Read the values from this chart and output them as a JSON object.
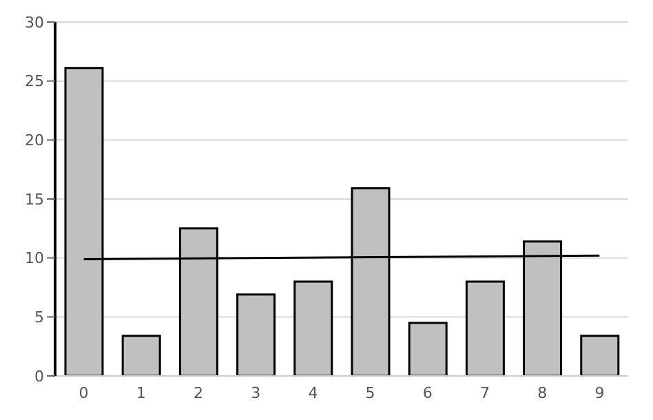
{
  "chart_data": {
    "type": "bar",
    "categories": [
      "0",
      "1",
      "2",
      "3",
      "4",
      "5",
      "6",
      "7",
      "8",
      "9"
    ],
    "series": [
      {
        "color": "#c0c0c0",
        "values": [
          26.1,
          3.4,
          12.5,
          6.9,
          8.0,
          15.9,
          4.5,
          8.0,
          11.4,
          3.4
        ]
      },
      {
        "type": "line",
        "color": "#000000",
        "values": [
          9.9,
          null,
          null,
          null,
          null,
          null,
          null,
          null,
          null,
          10.2
        ]
      }
    ],
    "ylim": [
      0,
      30
    ],
    "yticks": [
      0,
      5,
      10,
      15,
      20,
      25,
      30
    ],
    "grid": "y",
    "legend": false,
    "marker": "none",
    "line_style": "solid"
  }
}
